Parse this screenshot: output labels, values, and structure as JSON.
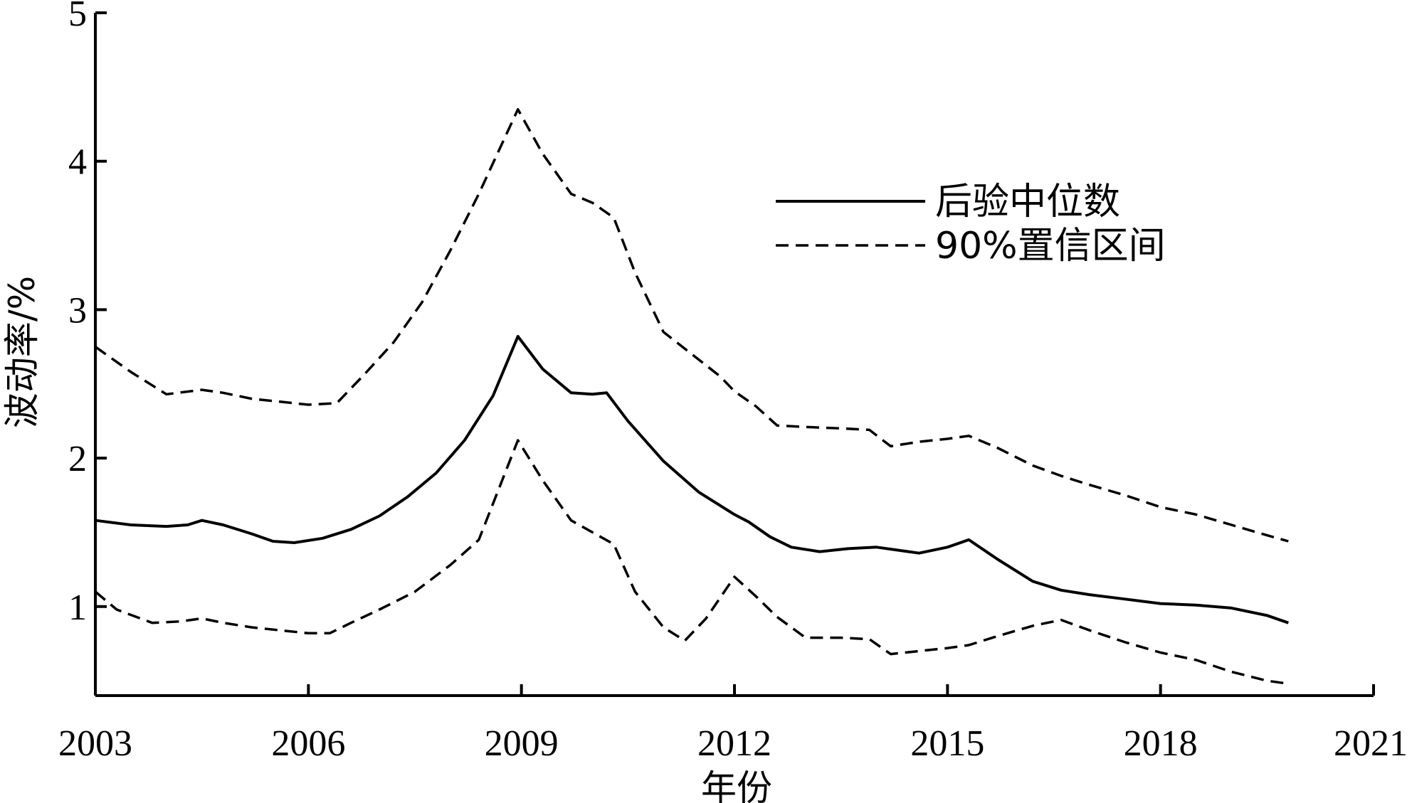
{
  "chart_data": {
    "type": "line",
    "xlabel": "年份",
    "ylabel": "波动率/%",
    "xlim": [
      2003,
      2021
    ],
    "ylim": [
      0.4,
      5
    ],
    "xticks": [
      2003,
      2006,
      2009,
      2012,
      2015,
      2018,
      2021
    ],
    "xtick_labels": [
      "2003",
      "2006",
      "2009",
      "2012",
      "2015",
      "2018",
      "2021"
    ],
    "yticks": [
      1,
      2,
      3,
      4,
      5
    ],
    "ytick_labels": [
      "1",
      "2",
      "3",
      "4",
      "5"
    ],
    "grid": false,
    "legend_position": "top-right",
    "series": [
      {
        "name": "后验中位数",
        "style": "solid",
        "color": "#000000",
        "x": [
          2003.0,
          2003.5,
          2004.0,
          2004.3,
          2004.5,
          2004.8,
          2005.2,
          2005.5,
          2005.8,
          2006.2,
          2006.6,
          2007.0,
          2007.4,
          2007.8,
          2008.2,
          2008.6,
          2008.95,
          2009.3,
          2009.7,
          2010.0,
          2010.2,
          2010.5,
          2011.0,
          2011.5,
          2012.0,
          2012.2,
          2012.5,
          2012.8,
          2013.2,
          2013.6,
          2014.0,
          2014.3,
          2014.6,
          2015.0,
          2015.3,
          2015.7,
          2016.2,
          2016.6,
          2017.0,
          2017.5,
          2018.0,
          2018.5,
          2019.0,
          2019.5,
          2019.8
        ],
        "y": [
          1.58,
          1.55,
          1.54,
          1.55,
          1.58,
          1.55,
          1.49,
          1.44,
          1.43,
          1.46,
          1.52,
          1.61,
          1.74,
          1.9,
          2.12,
          2.42,
          2.82,
          2.6,
          2.44,
          2.43,
          2.44,
          2.25,
          1.98,
          1.77,
          1.62,
          1.57,
          1.47,
          1.4,
          1.37,
          1.39,
          1.4,
          1.38,
          1.36,
          1.4,
          1.45,
          1.32,
          1.17,
          1.11,
          1.08,
          1.05,
          1.02,
          1.01,
          0.99,
          0.94,
          0.89
        ]
      },
      {
        "name": "90%置信区间",
        "style": "dashed",
        "color": "#000000",
        "x": [
          2003.0,
          2003.5,
          2004.0,
          2004.5,
          2004.8,
          2005.2,
          2005.6,
          2006.0,
          2006.4,
          2006.8,
          2007.2,
          2007.6,
          2008.0,
          2008.4,
          2008.95,
          2009.3,
          2009.7,
          2010.0,
          2010.3,
          2010.6,
          2011.0,
          2011.4,
          2011.8,
          2012.0,
          2012.3,
          2012.6,
          2013.0,
          2013.5,
          2013.9,
          2014.2,
          2014.6,
          2015.0,
          2015.3,
          2015.7,
          2016.2,
          2016.6,
          2017.0,
          2017.5,
          2018.0,
          2018.5,
          2019.0,
          2019.5,
          2019.8
        ],
        "y": [
          2.75,
          2.58,
          2.43,
          2.46,
          2.44,
          2.4,
          2.38,
          2.36,
          2.37,
          2.57,
          2.78,
          3.05,
          3.4,
          3.78,
          4.35,
          4.05,
          3.78,
          3.72,
          3.62,
          3.25,
          2.85,
          2.7,
          2.55,
          2.45,
          2.35,
          2.22,
          2.21,
          2.2,
          2.19,
          2.08,
          2.11,
          2.13,
          2.15,
          2.07,
          1.95,
          1.88,
          1.82,
          1.75,
          1.67,
          1.62,
          1.55,
          1.48,
          1.44
        ]
      },
      {
        "name": "90%置信区间",
        "style": "dashed",
        "color": "#000000",
        "show_in_legend": false,
        "x": [
          2003.0,
          2003.3,
          2003.8,
          2004.2,
          2004.5,
          2004.8,
          2005.2,
          2005.6,
          2006.0,
          2006.3,
          2006.6,
          2007.0,
          2007.5,
          2008.0,
          2008.4,
          2008.95,
          2009.3,
          2009.7,
          2010.0,
          2010.3,
          2010.6,
          2011.0,
          2011.3,
          2011.6,
          2012.0,
          2012.3,
          2012.6,
          2013.0,
          2013.5,
          2013.9,
          2014.2,
          2014.6,
          2015.0,
          2015.3,
          2015.7,
          2016.2,
          2016.6,
          2017.0,
          2017.5,
          2018.0,
          2018.5,
          2019.0,
          2019.5,
          2019.8
        ],
        "y": [
          1.1,
          0.98,
          0.89,
          0.9,
          0.92,
          0.89,
          0.86,
          0.84,
          0.82,
          0.82,
          0.89,
          0.98,
          1.1,
          1.28,
          1.45,
          2.12,
          1.85,
          1.58,
          1.5,
          1.42,
          1.1,
          0.86,
          0.77,
          0.92,
          1.2,
          1.07,
          0.93,
          0.79,
          0.79,
          0.78,
          0.68,
          0.7,
          0.72,
          0.74,
          0.8,
          0.87,
          0.91,
          0.84,
          0.76,
          0.69,
          0.64,
          0.56,
          0.5,
          0.48
        ]
      }
    ]
  }
}
